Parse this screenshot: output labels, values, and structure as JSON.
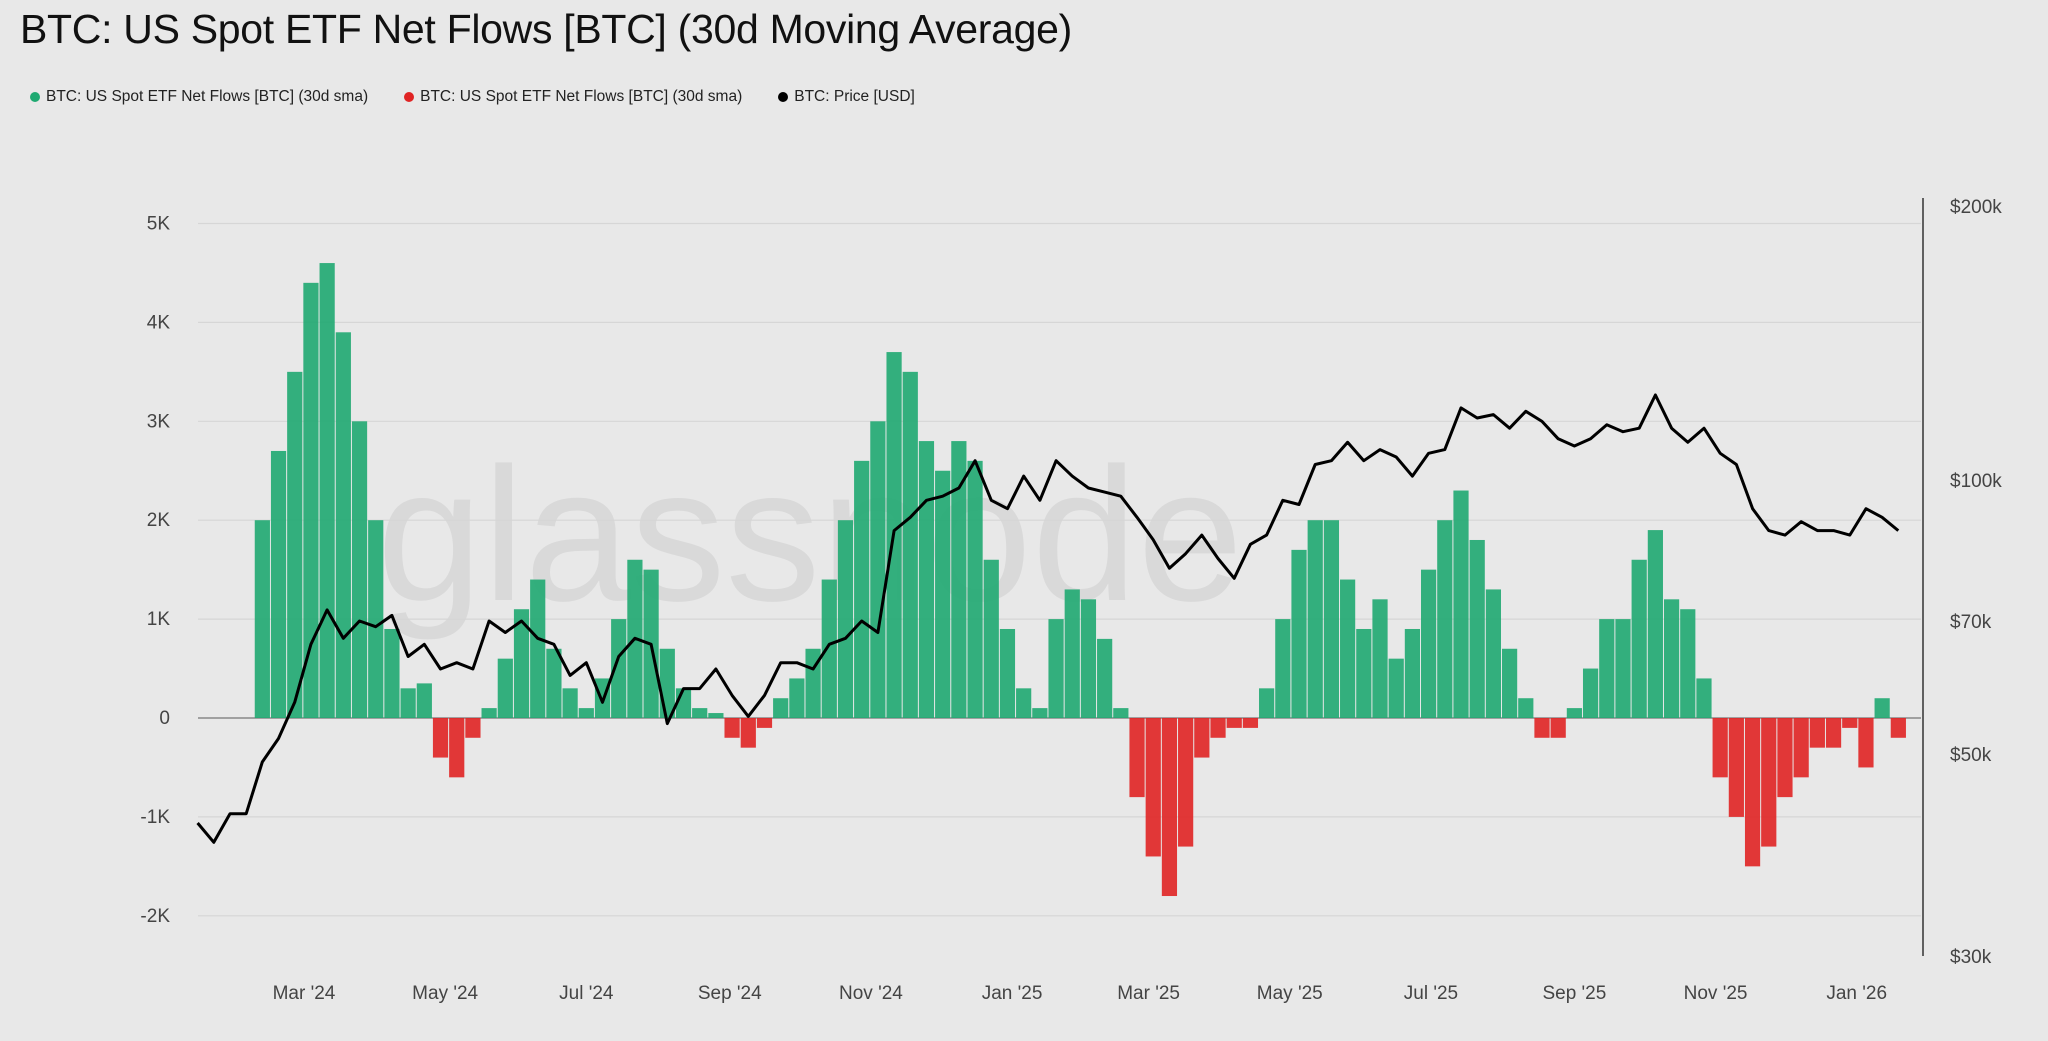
{
  "title": "BTC: US Spot ETF Net Flows [BTC] (30d Moving Average)",
  "watermark": "glassnode",
  "legend": [
    {
      "label": "BTC: US Spot ETF Net Flows [BTC] (30d sma)",
      "color": "#1fa971"
    },
    {
      "label": "BTC: US Spot ETF Net Flows [BTC] (30d sma)",
      "color": "#e02424"
    },
    {
      "label": "BTC: Price [USD]",
      "color": "#000000"
    }
  ],
  "chart_data": {
    "type": "bar+line",
    "title": "BTC: US Spot ETF Net Flows [BTC] (30d Moving Average)",
    "grid": true,
    "legend_placement": "top-left",
    "x_ticks": [
      "Mar '24",
      "May '24",
      "Jul '24",
      "Sep '24",
      "Nov '24",
      "Jan '25",
      "Mar '25",
      "May '25",
      "Jul '25",
      "Sep '25",
      "Nov '25",
      "Jan '26"
    ],
    "x_tick_dates": [
      "2024-03-01",
      "2024-05-01",
      "2024-07-01",
      "2024-09-01",
      "2024-11-01",
      "2025-01-01",
      "2025-03-01",
      "2025-05-01",
      "2025-07-01",
      "2025-09-01",
      "2025-11-01",
      "2026-01-01"
    ],
    "xlim": [
      "2024-01-15",
      "2026-01-27"
    ],
    "y_left": {
      "ticks": [
        5000,
        4000,
        3000,
        2000,
        1000,
        0,
        -1000,
        -2000
      ],
      "tick_labels": [
        "5K",
        "4K",
        "3K",
        "2K",
        "1K",
        "0",
        "-1K",
        "-2K"
      ],
      "ylim": [
        -2350,
        5200
      ]
    },
    "y_right": {
      "scale": "log",
      "ticks": [
        200000,
        100000,
        70000,
        50000,
        30000
      ],
      "tick_labels": [
        "$200k",
        "$100k",
        "$70k",
        "$50k",
        "$30k"
      ],
      "ylim": [
        30000,
        200000
      ]
    },
    "positive_color": "#1fa971",
    "negative_color": "#e02424",
    "line_color": "#000000",
    "flows": {
      "start": "2024-02-12",
      "interval_days": 7,
      "values": [
        2000,
        2700,
        3500,
        4400,
        4600,
        3900,
        3000,
        2000,
        900,
        300,
        350,
        -400,
        -600,
        -200,
        100,
        600,
        1100,
        1400,
        700,
        300,
        100,
        400,
        1000,
        1600,
        1500,
        700,
        300,
        100,
        50,
        -200,
        -300,
        -100,
        200,
        400,
        700,
        1400,
        2000,
        2600,
        3000,
        3700,
        3500,
        2800,
        2500,
        2800,
        2600,
        1600,
        900,
        300,
        100,
        1000,
        1300,
        1200,
        800,
        100,
        -800,
        -1400,
        -1800,
        -1300,
        -400,
        -200,
        -100,
        -100,
        300,
        1000,
        1700,
        2000,
        2000,
        1400,
        900,
        1200,
        600,
        900,
        1500,
        2000,
        2300,
        1800,
        1300,
        700,
        200,
        -200,
        -200,
        100,
        500,
        1000,
        1000,
        1600,
        1900,
        1200,
        1100,
        400,
        -600,
        -1000,
        -1500,
        -1300,
        -800,
        -600,
        -300,
        -300,
        -100,
        -500,
        200,
        -200
      ]
    },
    "price": {
      "start": "2024-01-15",
      "interval_days": 7,
      "values": [
        42000,
        40000,
        43000,
        43000,
        49000,
        52000,
        57000,
        66000,
        72000,
        67000,
        70000,
        69000,
        71000,
        64000,
        66000,
        62000,
        63000,
        62000,
        70000,
        68000,
        70000,
        67000,
        66000,
        61000,
        63000,
        57000,
        64000,
        67000,
        66000,
        54000,
        59000,
        59000,
        62000,
        58000,
        55000,
        58000,
        63000,
        63000,
        62000,
        66000,
        67000,
        70000,
        68000,
        88000,
        91000,
        95000,
        96000,
        98000,
        105000,
        95000,
        93000,
        101000,
        95000,
        105000,
        101000,
        98000,
        97000,
        96000,
        91000,
        86000,
        80000,
        83000,
        87000,
        82000,
        78000,
        85000,
        87000,
        95000,
        94000,
        104000,
        105000,
        110000,
        105000,
        108000,
        106000,
        101000,
        107000,
        108000,
        120000,
        117000,
        118000,
        114000,
        119000,
        116000,
        111000,
        109000,
        111000,
        115000,
        113000,
        114000,
        124000,
        114000,
        110000,
        114000,
        107000,
        104000,
        93000,
        88000,
        87000,
        90000,
        88000,
        88000,
        87000,
        93000,
        91000,
        88000
      ]
    }
  }
}
